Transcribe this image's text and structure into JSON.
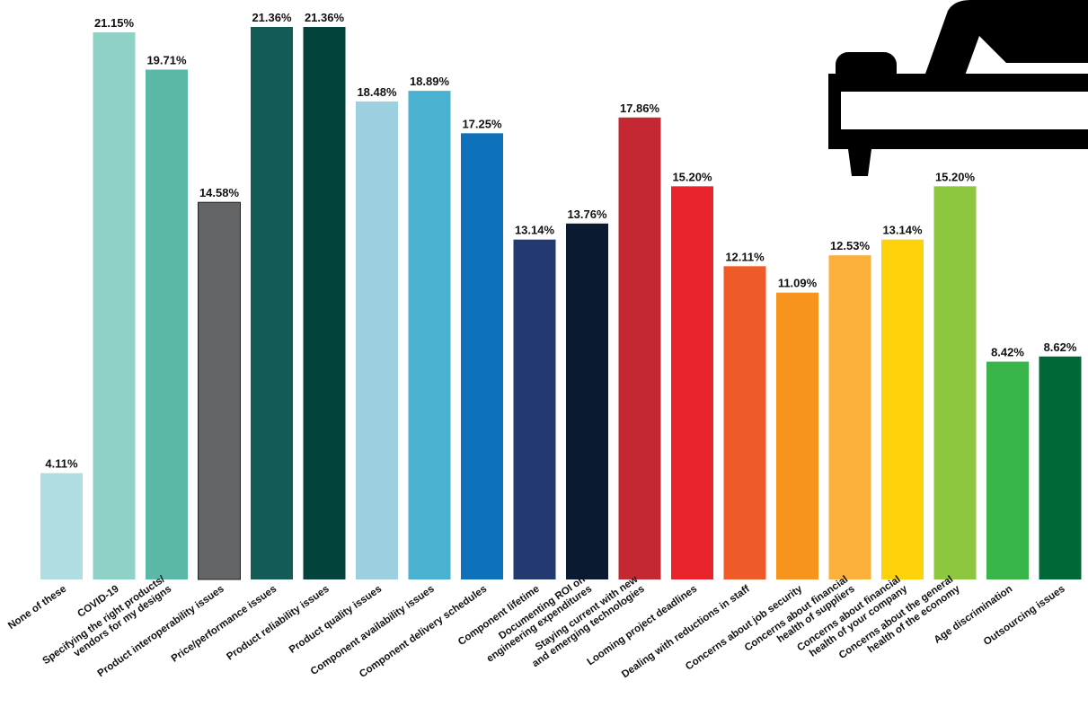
{
  "chart_data": {
    "type": "bar",
    "ylim": [
      0,
      23
    ],
    "grid": false,
    "categories": [
      "None of these",
      "COVID-19",
      "Specifying the right products/ vendors for my designs",
      "Product interoperability issues",
      "Price/performance issues",
      "Product reliability issues",
      "Product quality issues",
      "Component availability issues",
      "Component delivery schedules",
      "Component lifetime",
      "Documenting ROI on engineering expenditures",
      "Staying current with new and emerging technologies",
      "Looming project deadlines",
      "Dealing with reductions in staff",
      "Concerns about job security",
      "Concerns about financial health of suppliers",
      "Concerns about financial health of your company",
      "Concerns about the general health of the economy",
      "Age discrimination",
      "Outsourcing issues"
    ],
    "category_lines": [
      [
        "None of these"
      ],
      [
        "COVID-19"
      ],
      [
        "Specifying the right products/",
        "vendors for my designs"
      ],
      [
        "Product interoperability issues"
      ],
      [
        "Price/performance issues"
      ],
      [
        "Product reliability issues"
      ],
      [
        "Product quality issues"
      ],
      [
        "Component availability issues"
      ],
      [
        "Component delivery schedules"
      ],
      [
        "Component lifetime"
      ],
      [
        "Documenting ROI on",
        "engineering expenditures"
      ],
      [
        "Staying current with new",
        "and emerging technologies"
      ],
      [
        "Looming project deadlines"
      ],
      [
        "Dealing with reductions in staff"
      ],
      [
        "Concerns about job security"
      ],
      [
        "Concerns about financial",
        "health of suppliers"
      ],
      [
        "Concerns about financial",
        "health of your company"
      ],
      [
        "Concerns about the general",
        "health of the economy"
      ],
      [
        "Age discrimination"
      ],
      [
        "Outsourcing issues"
      ]
    ],
    "values": [
      4.11,
      21.15,
      19.71,
      14.58,
      21.36,
      21.36,
      18.48,
      18.89,
      17.25,
      13.14,
      13.76,
      17.86,
      15.2,
      12.11,
      11.09,
      12.53,
      13.14,
      15.2,
      8.42,
      8.62
    ],
    "value_labels": [
      "4.11%",
      "21.15%",
      "19.71%",
      "14.58%",
      "21.36%",
      "21.36%",
      "18.48%",
      "18.89%",
      "17.25%",
      "13.14%",
      "13.76%",
      "17.86%",
      "15.20%",
      "12.11%",
      "11.09%",
      "12.53%",
      "13.14%",
      "15.20%",
      "8.42%",
      "8.62%"
    ],
    "colors": [
      "#b0dde1",
      "#8fd1c5",
      "#5cb8a6",
      "#636466",
      "#135b57",
      "#03433b",
      "#9ccfe0",
      "#4ab2d0",
      "#0e72ba",
      "#233a70",
      "#0a1a31",
      "#c42833",
      "#e8232b",
      "#ef5a29",
      "#f7941e",
      "#fbb03b",
      "#fdd20a",
      "#8dc63f",
      "#39b54a",
      "#006837"
    ]
  },
  "decoration": {
    "icon": "couch-with-person-icon"
  }
}
